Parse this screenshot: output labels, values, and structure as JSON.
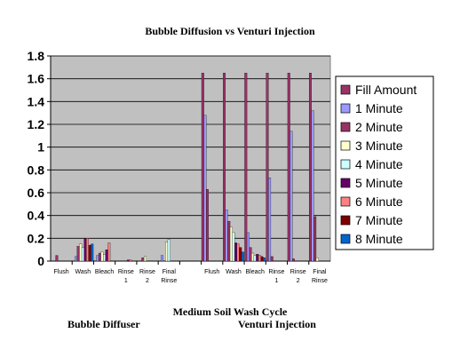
{
  "chart_data": {
    "type": "bar",
    "title": "Bubble Diffusion vs Venturi Injection",
    "xlabel": "Medium Soil Wash Cycle",
    "group_labels": [
      "Bubble Diffuser",
      "Venturi Injection"
    ],
    "ylabel": "",
    "ylim": [
      0,
      1.8
    ],
    "yticks": [
      0,
      0.2,
      0.4,
      0.6,
      0.8,
      1,
      1.2,
      1.4,
      1.6,
      1.8
    ],
    "grid": true,
    "legend_position": "right",
    "categories": [
      [
        "Flush"
      ],
      [
        "Wash"
      ],
      [
        "Bleach"
      ],
      [
        "Rinse",
        "1"
      ],
      [
        "Rinse",
        "2"
      ],
      [
        "Final",
        "Rinse"
      ],
      [
        ""
      ],
      [
        "Flush"
      ],
      [
        "Wash"
      ],
      [
        "Bleach"
      ],
      [
        "Rinse",
        "1"
      ],
      [
        "Rinse",
        "2"
      ],
      [
        "Final",
        "Rinse"
      ]
    ],
    "series": [
      {
        "name": "Fill Amount",
        "color": "#993366",
        "values": [
          0,
          0,
          0,
          0,
          0,
          0,
          0,
          1.65,
          1.65,
          1.65,
          1.65,
          1.65,
          1.65
        ]
      },
      {
        "name": "1 Minute",
        "color": "#9999ff",
        "values": [
          0,
          0.04,
          0.05,
          0,
          0,
          0.05,
          0,
          1.28,
          0.45,
          0.25,
          0.73,
          1.14,
          1.32
        ]
      },
      {
        "name": "2 Minute",
        "color": "#993366",
        "values": [
          0.05,
          0.13,
          0.07,
          0,
          0.03,
          0,
          0,
          0.63,
          0.35,
          0.12,
          0.04,
          0.02,
          0.39
        ]
      },
      {
        "name": "3 Minute",
        "color": "#ffffcc",
        "values": [
          0,
          0.15,
          0.08,
          0,
          0.04,
          0.17,
          0,
          0,
          0.3,
          0.07,
          0,
          0,
          0.03
        ]
      },
      {
        "name": "4 Minute",
        "color": "#ccffff",
        "values": [
          0,
          0.12,
          0.06,
          0,
          0,
          0.19,
          0,
          0,
          0.25,
          0.05,
          0,
          0,
          0
        ]
      },
      {
        "name": "5 Minute",
        "color": "#660066",
        "values": [
          0,
          0.2,
          0.1,
          0.01,
          0,
          0,
          0,
          0,
          0.16,
          0.06,
          0,
          0,
          0
        ]
      },
      {
        "name": "6 Minute",
        "color": "#ff8080",
        "values": [
          0,
          0.2,
          0.16,
          0.01,
          0,
          0,
          0,
          0,
          0.15,
          0.05,
          0,
          0,
          0
        ]
      },
      {
        "name": "7 Minute",
        "color": "#800000",
        "values": [
          0,
          0.14,
          0,
          0,
          0,
          0,
          0,
          0,
          0.12,
          0.04,
          0,
          0,
          0
        ]
      },
      {
        "name": "8 Minute",
        "color": "#0066cc",
        "values": [
          0,
          0.15,
          0,
          0,
          0,
          0,
          0,
          0,
          0.08,
          0.03,
          0,
          0,
          0
        ]
      }
    ]
  }
}
